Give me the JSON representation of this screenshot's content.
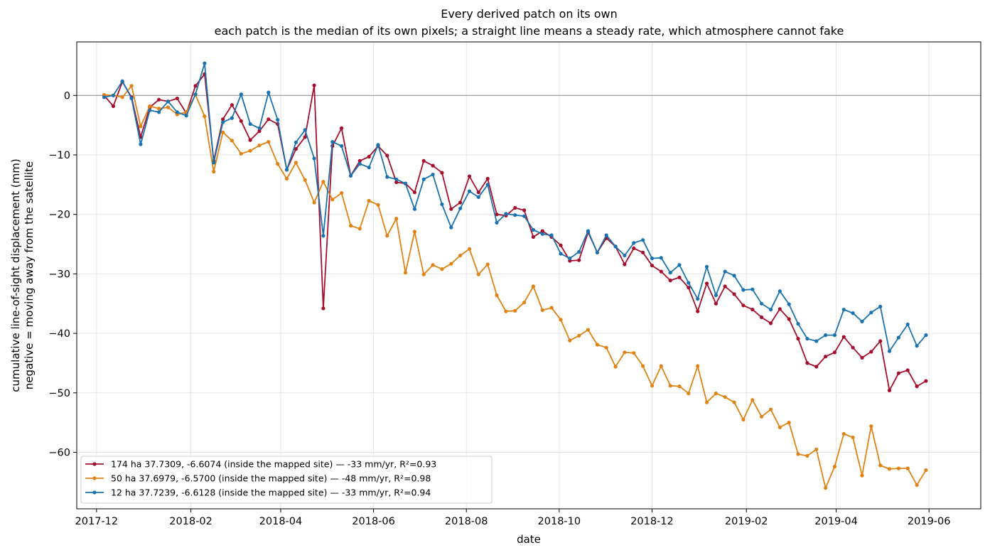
{
  "chart_data": {
    "type": "line",
    "title": "Every derived patch on its own",
    "subtitle": "each patch is the median of its own pixels; a straight line means a steady rate, which atmosphere cannot fake",
    "xlabel": "date",
    "ylabel": "cumulative line-of-sight displacement (mm)",
    "ylabel2": "negative = moving away from the satellite",
    "xlim": [
      "2017-11-18",
      "2019-07-05"
    ],
    "ylim": [
      -69.5,
      9
    ],
    "x_ticks": [
      "2017-12",
      "2018-02",
      "2018-04",
      "2018-06",
      "2018-08",
      "2018-10",
      "2018-12",
      "2019-02",
      "2019-04",
      "2019-06"
    ],
    "y_ticks": [
      0,
      -10,
      -20,
      -30,
      -40,
      -50,
      -60
    ],
    "y_tick_labels": [
      "0",
      "−10",
      "−20",
      "−30",
      "−40",
      "−50",
      "−60"
    ],
    "reference_line": 0,
    "grid": true,
    "legend_position": "lower-left",
    "colors": {
      "174ha": "#a50f2c",
      "50ha": "#e08214",
      "12ha": "#1a72b0",
      "zero_line": "#999999"
    },
    "x_dates": [
      "2017-12-06",
      "2017-12-12",
      "2017-12-18",
      "2017-12-24",
      "2017-12-30",
      "2018-01-05",
      "2018-01-11",
      "2018-01-17",
      "2018-01-23",
      "2018-01-29",
      "2018-02-04",
      "2018-02-10",
      "2018-02-16",
      "2018-02-22",
      "2018-02-28",
      "2018-03-06",
      "2018-03-12",
      "2018-03-18",
      "2018-03-24",
      "2018-03-30",
      "2018-04-05",
      "2018-04-11",
      "2018-04-17",
      "2018-04-23",
      "2018-04-29",
      "2018-05-05",
      "2018-05-11",
      "2018-05-17",
      "2018-05-23",
      "2018-05-29",
      "2018-06-04",
      "2018-06-10",
      "2018-06-16",
      "2018-06-22",
      "2018-06-28",
      "2018-07-04",
      "2018-07-10",
      "2018-07-16",
      "2018-07-22",
      "2018-07-28",
      "2018-08-03",
      "2018-08-09",
      "2018-08-15",
      "2018-08-21",
      "2018-08-27",
      "2018-09-02",
      "2018-09-08",
      "2018-09-14",
      "2018-09-20",
      "2018-09-26",
      "2018-10-02",
      "2018-10-08",
      "2018-10-14",
      "2018-10-20",
      "2018-10-26",
      "2018-11-01",
      "2018-11-07",
      "2018-11-13",
      "2018-11-19",
      "2018-11-25",
      "2018-12-01",
      "2018-12-07",
      "2018-12-13",
      "2018-12-19",
      "2018-12-25",
      "2018-12-31",
      "2019-01-06",
      "2019-01-12",
      "2019-01-18",
      "2019-01-24",
      "2019-01-30",
      "2019-02-05",
      "2019-02-11",
      "2019-02-17",
      "2019-02-23",
      "2019-03-01",
      "2019-03-07",
      "2019-03-13",
      "2019-03-19",
      "2019-03-25",
      "2019-03-31",
      "2019-04-06",
      "2019-04-12",
      "2019-04-18",
      "2019-04-24",
      "2019-04-30",
      "2019-05-06",
      "2019-05-12",
      "2019-05-18",
      "2019-05-24",
      "2019-05-30"
    ],
    "series": [
      {
        "name": "174 ha  37.7309, -6.6074  (inside the mapped site)  —  -33 mm/yr, R²=0.93",
        "color": "#a50f2c",
        "values": [
          0,
          -1.8,
          2.3,
          -0.3,
          -7,
          -2,
          -0.7,
          -1,
          -0.5,
          -3,
          1.6,
          3.6,
          -11,
          -4,
          -1.6,
          -4.3,
          -7.5,
          -6,
          -4,
          -4.8,
          -12.5,
          -9,
          -7,
          1.7,
          -35.8,
          -8.5,
          -5.5,
          -13.5,
          -11,
          -10.3,
          -8.5,
          -10.1,
          -14.6,
          -14.8,
          -16.3,
          -11,
          -11.8,
          -13,
          -19.1,
          -18,
          -13.6,
          -16.3,
          -14,
          -20,
          -20.2,
          -18.9,
          -19.3,
          -23.8,
          -22.8,
          -23.8,
          -25.2,
          -27.8,
          -27.7,
          -23,
          -26.4,
          -24,
          -25.4,
          -28.4,
          -25.7,
          -26.4,
          -28.6,
          -29.6,
          -31.1,
          -30.6,
          -32.3,
          -36.3,
          -31.6,
          -35,
          -32.1,
          -33.4,
          -35.3,
          -36,
          -37.3,
          -38.3,
          -35.9,
          -37.6,
          -40.9,
          -45,
          -45.6,
          -43.9,
          -43.2,
          -40.6,
          -42.4,
          -44.1,
          -43.1,
          -41.3,
          -49.6,
          -46.7,
          -46.2,
          -48.9,
          -48
        ]
      },
      {
        "name": "50 ha  37.6979, -6.5700  (inside the mapped site)  —  -48 mm/yr, R²=0.98",
        "color": "#e08214",
        "values": [
          0.1,
          0,
          -0.3,
          1.6,
          -5.2,
          -1.8,
          -2.2,
          -2,
          -3.2,
          -2.8,
          0.1,
          -3.5,
          -12.8,
          -6.2,
          -7.6,
          -9.8,
          -9.3,
          -8.4,
          -7.8,
          -11.5,
          -14,
          -11.3,
          -14.2,
          -18,
          -14.5,
          -17.5,
          -16.4,
          -21.9,
          -22.4,
          -17.7,
          -18.4,
          -23.6,
          -20.7,
          -29.8,
          -22.9,
          -30.1,
          -28.5,
          -29.2,
          -28.3,
          -26.9,
          -25.8,
          -30.1,
          -28.4,
          -33.6,
          -36.3,
          -36.2,
          -34.8,
          -32.1,
          -36.1,
          -35.7,
          -37.7,
          -41.2,
          -40.4,
          -39.4,
          -41.9,
          -42.4,
          -45.6,
          -43.2,
          -43.3,
          -45.5,
          -48.8,
          -45.5,
          -48.8,
          -48.9,
          -50.1,
          -45.5,
          -51.6,
          -50.1,
          -50.7,
          -51.6,
          -54.5,
          -51.2,
          -54,
          -52.8,
          -55.8,
          -55,
          -60.3,
          -60.6,
          -59.5,
          -66,
          -62.4,
          -56.9,
          -57.5,
          -63.9,
          -55.6,
          -62.2,
          -62.8,
          -62.7,
          -62.7,
          -65.5,
          -63
        ]
      },
      {
        "name": "12 ha  37.7239, -6.6128  (inside the mapped site)  —  -33 mm/yr, R²=0.94",
        "color": "#1a72b0",
        "values": [
          -0.3,
          0,
          2.4,
          -0.5,
          -8.2,
          -2.5,
          -2.8,
          -1,
          -2.8,
          -3.4,
          0.2,
          5.4,
          -11.3,
          -4.5,
          -3.8,
          0.2,
          -4.8,
          -5.5,
          0.5,
          -4.1,
          -12.5,
          -7.9,
          -5.8,
          -10.6,
          -23.6,
          -7.8,
          -8.5,
          -13.5,
          -11.5,
          -12.1,
          -8.3,
          -13.7,
          -14.1,
          -14.8,
          -19.1,
          -14.1,
          -13.3,
          -18.3,
          -22.2,
          -19,
          -16.1,
          -17.1,
          -15,
          -21.4,
          -19.9,
          -20.1,
          -20.3,
          -22.6,
          -23.3,
          -23.5,
          -26.6,
          -27.4,
          -26.3,
          -22.8,
          -26.4,
          -23.5,
          -25.4,
          -26.9,
          -24.8,
          -24.3,
          -27.4,
          -27.3,
          -29.8,
          -28.5,
          -31.5,
          -34.2,
          -28.8,
          -33.6,
          -29.6,
          -30.3,
          -32.7,
          -32.6,
          -35,
          -36,
          -32.9,
          -35.1,
          -38.4,
          -40.9,
          -41.3,
          -40.3,
          -40.3,
          -36,
          -36.6,
          -38,
          -36.5,
          -35.5,
          -43,
          -40.7,
          -38.5,
          -42.1,
          -40.3
        ]
      }
    ]
  }
}
